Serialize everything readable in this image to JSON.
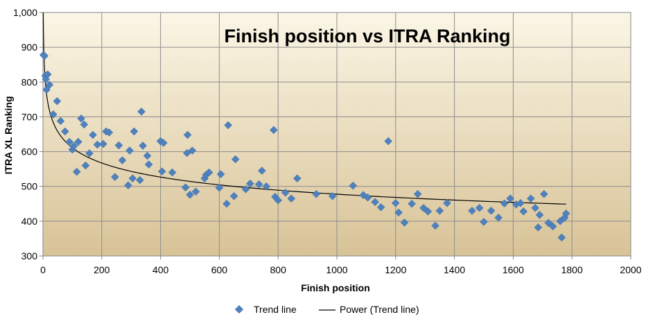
{
  "chart_data": {
    "type": "scatter",
    "title": "Finish position vs ITRA Ranking",
    "xlabel": "Finish position",
    "ylabel": "ITRA XL Ranking",
    "xlim": [
      0,
      2000
    ],
    "ylim": [
      300,
      1000
    ],
    "xticks": [
      "0",
      "200",
      "400",
      "600",
      "800",
      "1000",
      "1200",
      "1400",
      "1600",
      "1800",
      "2000"
    ],
    "yticks": [
      "300",
      "400",
      "500",
      "600",
      "700",
      "800",
      "900",
      "1,000"
    ],
    "grid": true,
    "legend_position": "bottom",
    "colors": {
      "marker": "#4f81bd",
      "trend": "#000000",
      "bg_top": "#fbf6e6",
      "bg_bottom": "#d8c397"
    },
    "series": [
      {
        "name": "Trend line",
        "kind": "scatter",
        "points": [
          [
            2,
            878
          ],
          [
            5,
            875
          ],
          [
            8,
            818
          ],
          [
            10,
            808
          ],
          [
            12,
            778
          ],
          [
            16,
            822
          ],
          [
            22,
            792
          ],
          [
            35,
            707
          ],
          [
            48,
            745
          ],
          [
            60,
            688
          ],
          [
            75,
            658
          ],
          [
            90,
            628
          ],
          [
            100,
            606
          ],
          [
            105,
            616
          ],
          [
            115,
            542
          ],
          [
            120,
            628
          ],
          [
            130,
            695
          ],
          [
            140,
            678
          ],
          [
            145,
            560
          ],
          [
            158,
            595
          ],
          [
            170,
            648
          ],
          [
            185,
            620
          ],
          [
            205,
            622
          ],
          [
            215,
            658
          ],
          [
            225,
            655
          ],
          [
            245,
            527
          ],
          [
            258,
            618
          ],
          [
            270,
            575
          ],
          [
            290,
            503
          ],
          [
            295,
            603
          ],
          [
            305,
            523
          ],
          [
            310,
            658
          ],
          [
            330,
            518
          ],
          [
            335,
            715
          ],
          [
            340,
            617
          ],
          [
            355,
            588
          ],
          [
            360,
            563
          ],
          [
            400,
            630
          ],
          [
            405,
            543
          ],
          [
            410,
            625
          ],
          [
            440,
            540
          ],
          [
            485,
            497
          ],
          [
            490,
            596
          ],
          [
            492,
            648
          ],
          [
            500,
            476
          ],
          [
            508,
            603
          ],
          [
            520,
            485
          ],
          [
            550,
            523
          ],
          [
            555,
            533
          ],
          [
            565,
            540
          ],
          [
            600,
            496
          ],
          [
            605,
            535
          ],
          [
            625,
            450
          ],
          [
            630,
            676
          ],
          [
            650,
            472
          ],
          [
            655,
            578
          ],
          [
            690,
            492
          ],
          [
            705,
            508
          ],
          [
            735,
            506
          ],
          [
            745,
            545
          ],
          [
            760,
            500
          ],
          [
            785,
            662
          ],
          [
            790,
            470
          ],
          [
            800,
            460
          ],
          [
            825,
            482
          ],
          [
            845,
            465
          ],
          [
            865,
            523
          ],
          [
            930,
            478
          ],
          [
            985,
            472
          ],
          [
            1055,
            502
          ],
          [
            1090,
            475
          ],
          [
            1105,
            468
          ],
          [
            1130,
            455
          ],
          [
            1150,
            440
          ],
          [
            1175,
            630
          ],
          [
            1200,
            452
          ],
          [
            1210,
            425
          ],
          [
            1230,
            396
          ],
          [
            1255,
            450
          ],
          [
            1275,
            478
          ],
          [
            1295,
            438
          ],
          [
            1310,
            428
          ],
          [
            1335,
            387
          ],
          [
            1350,
            430
          ],
          [
            1375,
            452
          ],
          [
            1460,
            430
          ],
          [
            1485,
            438
          ],
          [
            1500,
            398
          ],
          [
            1525,
            430
          ],
          [
            1550,
            410
          ],
          [
            1570,
            451
          ],
          [
            1590,
            465
          ],
          [
            1610,
            448
          ],
          [
            1625,
            452
          ],
          [
            1635,
            428
          ],
          [
            1660,
            465
          ],
          [
            1675,
            438
          ],
          [
            1685,
            382
          ],
          [
            1690,
            418
          ],
          [
            1705,
            478
          ],
          [
            1720,
            395
          ],
          [
            1735,
            385
          ],
          [
            1760,
            400
          ],
          [
            1765,
            353
          ],
          [
            1775,
            410
          ],
          [
            1780,
            422
          ]
        ]
      },
      {
        "name": "Power (Trend line)",
        "kind": "power-trend",
        "coefficient": 1000,
        "exponent": -0.107,
        "x_range": [
          1,
          1780
        ]
      }
    ]
  }
}
